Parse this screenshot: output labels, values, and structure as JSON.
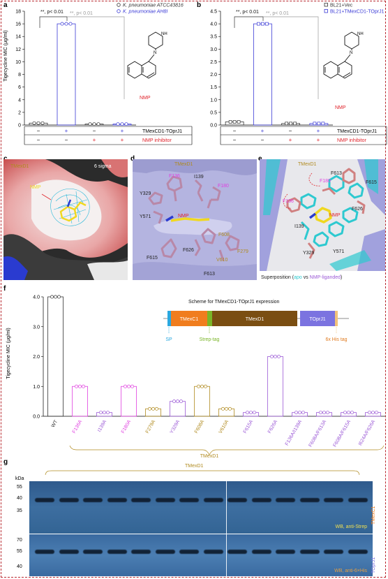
{
  "colors": {
    "black": "#333333",
    "blue": "#3a3ad6",
    "gray": "#9a9a9a",
    "red": "#e0242c",
    "magenta": "#e040e0",
    "violet": "#9b59d6",
    "olive": "#b08a1e",
    "orange": "#e07b20",
    "tmexc1": "#f07d1e",
    "tmexd1": "#7a4e12",
    "toprj1": "#7b73e0",
    "sp": "#2aa8e0",
    "strep": "#7ab528",
    "his": "#f2c27a"
  },
  "panel_a": {
    "label": "a",
    "ylabel": "Tigecycline MIC (μg/ml)",
    "legend": [
      {
        "name": "K. pneumoniae ATCC43816",
        "color": "#333333"
      },
      {
        "name": "K. pneumoniae AH8I",
        "color": "#3a3ad6"
      }
    ],
    "sig1": "**, p< 0.01",
    "sig2": "**, p< 0.01",
    "compound": "NMP",
    "row1_label": "TMexCD1-TOprJ1",
    "row2_label": "NMP inhibitor",
    "row1": [
      "−",
      "+",
      "−",
      "+"
    ],
    "row2": [
      "−",
      "−",
      "+",
      "+"
    ]
  },
  "panel_b": {
    "label": "b",
    "legend": [
      {
        "name": "BL21+Vec",
        "color": "#333333"
      },
      {
        "name": "BL21+TMexCD1-TOprJ1",
        "color": "#3a3ad6"
      }
    ],
    "sig1": "**, p< 0.01",
    "sig2": "**, p< 0.01",
    "compound": "NMP",
    "row1_label": "TMexCD1-TOprJ1",
    "row2_label": "NMP inhibitor",
    "row1": [
      "−",
      "+",
      "−",
      "+"
    ],
    "row2": [
      "−",
      "−",
      "+",
      "+"
    ]
  },
  "chart_data": [
    {
      "type": "bar",
      "panel": "a",
      "categories": [
        "1",
        "2",
        "3",
        "4"
      ],
      "values": [
        0.3,
        16,
        0.15,
        0.15
      ],
      "ylim": [
        0,
        18
      ],
      "yticks": [
        0,
        2,
        4,
        6,
        8,
        10,
        12,
        14,
        16,
        18
      ],
      "colors": [
        "#333333",
        "#3a3ad6",
        "#333333",
        "#3a3ad6"
      ]
    },
    {
      "type": "bar",
      "panel": "b",
      "categories": [
        "1",
        "2",
        "3",
        "4"
      ],
      "values": [
        0.125,
        4,
        0.06,
        0.06
      ],
      "ylim": [
        0,
        4.5
      ],
      "yticks": [
        0.0,
        0.5,
        1.0,
        1.5,
        2.0,
        2.5,
        3.0,
        3.5,
        4.0,
        4.5
      ],
      "colors": [
        "#333333",
        "#3a3ad6",
        "#333333",
        "#3a3ad6"
      ]
    },
    {
      "type": "bar",
      "panel": "f",
      "ylabel": "Tigecycline MIC (μg/ml)",
      "ylim": [
        0,
        4.0
      ],
      "yticks": [
        0.0,
        1.0,
        2.0,
        3.0,
        4.0
      ],
      "categories": [
        "WT",
        "F136A",
        "I139A",
        "F180A",
        "F279A",
        "Y329A",
        "F608A",
        "V610A",
        "F615A",
        "F626A",
        "F136A/I139A",
        "F608A/F613A",
        "F608A/F615A",
        "I624A/F626A"
      ],
      "values": [
        4,
        1,
        0.125,
        1,
        0.25,
        0.5,
        1,
        0.25,
        0.125,
        2,
        0.125,
        0.125,
        0.125,
        0.125
      ],
      "colors": [
        "#333333",
        "#e040e0",
        "#9b59d6",
        "#e040e0",
        "#b08a1e",
        "#9b59d6",
        "#b08a1e",
        "#b08a1e",
        "#9b59d6",
        "#9b59d6",
        "#9b59d6",
        "#9b59d6",
        "#9b59d6",
        "#9b59d6"
      ]
    }
  ],
  "panel_c": {
    "label": "c",
    "title": "TMexD1",
    "sigma": "6 sigma",
    "ligand": "NMP"
  },
  "panel_d": {
    "label": "d",
    "title": "TMexD1",
    "ligand": "NMP",
    "residues": [
      "F136",
      "I139",
      "Y329",
      "F180",
      "Y571",
      "F608",
      "F626",
      "V610",
      "F279",
      "F615",
      "F613"
    ]
  },
  "panel_e": {
    "label": "e",
    "title": "TMexD1",
    "ligand": "NMP",
    "residues": [
      "F613",
      "F180",
      "F615",
      "F136",
      "F626",
      "I139",
      "Y329",
      "Y571"
    ],
    "caption_pre": "Superposition (",
    "caption_apo": "apo",
    "caption_vs": " vs ",
    "caption_lig": "NMP-liganded",
    "caption_post": ")"
  },
  "panel_f": {
    "label": "f",
    "scheme_title": "Scheme for TMexCD1-TOprJ1 expression",
    "blocks": [
      "TMexC1",
      "TMexD1",
      "TOprJ1"
    ],
    "tags": [
      "SP",
      "Strep-tag",
      "6x His tag"
    ],
    "bracket": "TMexD1"
  },
  "panel_g": {
    "label": "g",
    "kda": "kDa",
    "bracket": "TMexD1",
    "top_ticks": [
      "55",
      "40",
      "35"
    ],
    "bot_ticks": [
      "70",
      "55",
      "40"
    ],
    "top_label": "WB, anti-Strep",
    "bot_label": "WB, anti-6×His",
    "top_side": "TMexC1",
    "bot_side": "TOprJ1"
  }
}
